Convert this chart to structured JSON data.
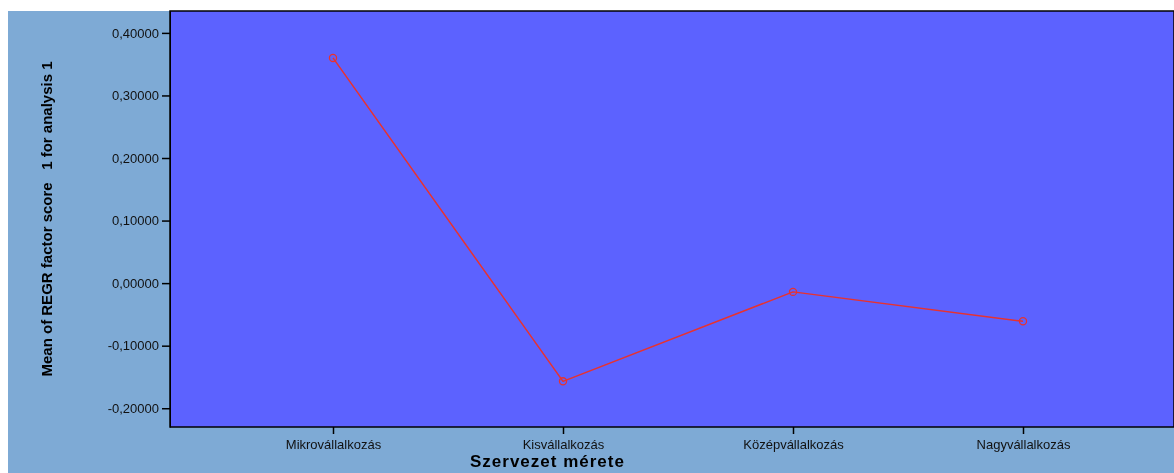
{
  "chart_data": {
    "type": "line",
    "xlabel": "Szervezet mérete",
    "ylabel": "Mean of REGR factor score   1 for analysis 1",
    "categories": [
      "Mikrovállalkozás",
      "Kisvállalkozás",
      "Középvállalkozás",
      "Nagyvállalkozás"
    ],
    "series": [
      {
        "color": "#e8322f",
        "values": [
          0.36,
          -0.157,
          -0.014,
          -0.061
        ]
      }
    ],
    "ylim": [
      -0.23,
      0.435
    ],
    "yticks": [
      {
        "value": -0.2,
        "label": "-0,20000"
      },
      {
        "value": -0.1,
        "label": "-0,10000"
      },
      {
        "value": 0,
        "label": "0,00000"
      },
      {
        "value": 0.1,
        "label": "0,10000"
      },
      {
        "value": 0.2,
        "label": "0,20000"
      },
      {
        "value": 0.3,
        "label": "0,30000"
      },
      {
        "value": 0.4,
        "label": "0,40000"
      }
    ],
    "marker": "circle",
    "line_style": "solid",
    "grid": false
  }
}
